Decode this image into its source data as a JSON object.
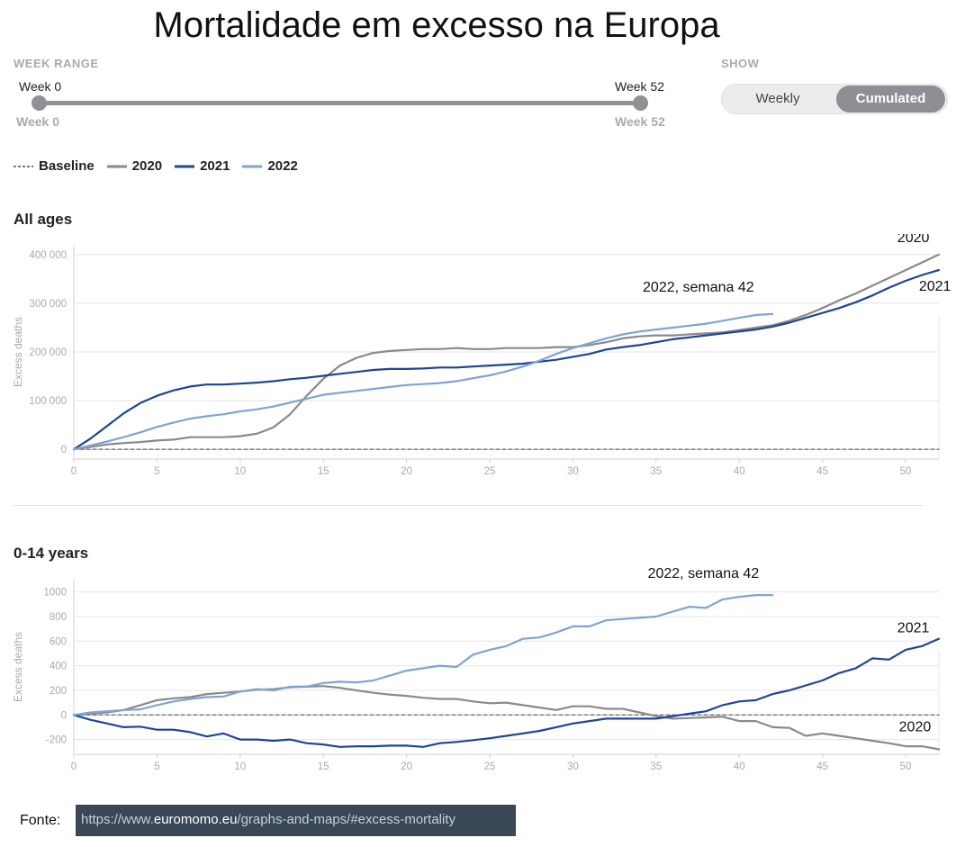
{
  "title": "Mortalidade em excesso na Europa",
  "week_range": {
    "label": "WEEK RANGE",
    "start_top": "Week 0",
    "end_top": "Week 52",
    "start_bottom": "Week 0",
    "end_bottom": "Week 52",
    "start_value": 0,
    "end_value": 52
  },
  "show": {
    "label": "SHOW",
    "options": [
      "Weekly",
      "Cumulated"
    ],
    "selected": "Cumulated"
  },
  "legend": {
    "items": [
      {
        "label": "Baseline",
        "color": "#777777",
        "dashed": true
      },
      {
        "label": "2020",
        "color": "#8a8a8a"
      },
      {
        "label": "2021",
        "color": "#1d4597"
      },
      {
        "label": "2022",
        "color": "#7ea4d6"
      }
    ]
  },
  "source": {
    "label": "Fonte:",
    "url_prefix": "https://www.",
    "url_domain": "euromomo.eu",
    "url_suffix": "/graphs-and-maps/#excess-mortality"
  },
  "chart_data": [
    {
      "type": "line",
      "title": "All ages",
      "ylabel": "Excess deaths",
      "xlabel": "",
      "xlim": [
        0,
        52
      ],
      "ylim": [
        -20000,
        420000
      ],
      "x_ticks": [
        0,
        5,
        10,
        15,
        20,
        25,
        30,
        35,
        40,
        45,
        50
      ],
      "y_ticks": [
        0,
        100000,
        200000,
        300000,
        400000
      ],
      "y_tick_labels": [
        "0",
        "100 000",
        "200 000",
        "300 000",
        "400 000"
      ],
      "grid": true,
      "annotations": [
        {
          "text": "2020",
          "x": 49.5,
          "y": 426000
        },
        {
          "text": "2021",
          "x": 50.8,
          "y": 326000
        },
        {
          "text": "2022, semana 42",
          "x": 34.2,
          "y": 324000
        }
      ],
      "series": [
        {
          "name": "Baseline",
          "color": "#777777",
          "dashed": true,
          "x": [
            0,
            52
          ],
          "y": [
            0,
            0
          ]
        },
        {
          "name": "2020",
          "color": "#8a8a8a",
          "x": [
            0,
            1,
            2,
            3,
            4,
            5,
            6,
            7,
            8,
            9,
            10,
            11,
            12,
            13,
            14,
            15,
            16,
            17,
            18,
            19,
            20,
            21,
            22,
            23,
            24,
            25,
            26,
            27,
            28,
            29,
            30,
            31,
            32,
            33,
            34,
            35,
            36,
            37,
            38,
            39,
            40,
            41,
            42,
            43,
            44,
            45,
            46,
            47,
            48,
            49,
            50,
            51,
            52
          ],
          "y": [
            0,
            5000,
            10000,
            13000,
            15000,
            18000,
            20000,
            25000,
            25000,
            25000,
            27000,
            32000,
            45000,
            72000,
            110000,
            145000,
            172000,
            188000,
            198000,
            202000,
            204000,
            206000,
            206000,
            208000,
            206000,
            206000,
            208000,
            208000,
            208000,
            210000,
            210000,
            214000,
            220000,
            228000,
            232000,
            234000,
            234000,
            236000,
            238000,
            240000,
            245000,
            250000,
            255000,
            264000,
            276000,
            290000,
            306000,
            320000,
            336000,
            352000,
            368000,
            384000,
            400000
          ]
        },
        {
          "name": "2021",
          "color": "#1d4597",
          "x": [
            0,
            1,
            2,
            3,
            4,
            5,
            6,
            7,
            8,
            9,
            10,
            11,
            12,
            13,
            14,
            15,
            16,
            17,
            18,
            19,
            20,
            21,
            22,
            23,
            24,
            25,
            26,
            27,
            28,
            29,
            30,
            31,
            32,
            33,
            34,
            35,
            36,
            37,
            38,
            39,
            40,
            41,
            42,
            43,
            44,
            45,
            46,
            47,
            48,
            49,
            50,
            51,
            52
          ],
          "y": [
            0,
            22000,
            48000,
            74000,
            95000,
            110000,
            121000,
            129000,
            133000,
            133000,
            135000,
            137000,
            140000,
            144000,
            147000,
            151000,
            155000,
            159000,
            163000,
            165000,
            165000,
            166000,
            168000,
            168000,
            170000,
            172000,
            174000,
            176000,
            180000,
            184000,
            190000,
            196000,
            205000,
            210000,
            214000,
            220000,
            226000,
            230000,
            234000,
            238000,
            242000,
            246000,
            252000,
            260000,
            270000,
            280000,
            290000,
            302000,
            316000,
            332000,
            346000,
            358000,
            368000
          ]
        },
        {
          "name": "2022",
          "color": "#7ea4d6",
          "x": [
            0,
            1,
            2,
            3,
            4,
            5,
            6,
            7,
            8,
            9,
            10,
            11,
            12,
            13,
            14,
            15,
            16,
            17,
            18,
            19,
            20,
            21,
            22,
            23,
            24,
            25,
            26,
            27,
            28,
            29,
            30,
            31,
            32,
            33,
            34,
            35,
            36,
            37,
            38,
            39,
            40,
            41,
            42
          ],
          "y": [
            0,
            8000,
            16000,
            25000,
            35000,
            46000,
            55000,
            63000,
            68000,
            72000,
            78000,
            82000,
            88000,
            96000,
            104000,
            112000,
            116000,
            120000,
            124000,
            128000,
            132000,
            134000,
            136000,
            140000,
            146000,
            152000,
            160000,
            170000,
            182000,
            196000,
            208000,
            218000,
            228000,
            236000,
            242000,
            246000,
            250000,
            254000,
            258000,
            264000,
            270000,
            276000,
            278000
          ]
        }
      ]
    },
    {
      "type": "line",
      "title": "0-14 years",
      "ylabel": "Excess deaths",
      "xlabel": "",
      "xlim": [
        0,
        52
      ],
      "ylim": [
        -320,
        1100
      ],
      "x_ticks": [
        0,
        5,
        10,
        15,
        20,
        25,
        30,
        35,
        40,
        45,
        50
      ],
      "y_ticks": [
        -200,
        0,
        200,
        400,
        600,
        800,
        1000
      ],
      "y_tick_labels": [
        "-200",
        "0",
        "200",
        "400",
        "600",
        "800",
        "1000"
      ],
      "grid": true,
      "annotations": [
        {
          "text": "2022, semana 42",
          "x": 34.5,
          "y": 1115
        },
        {
          "text": "2021",
          "x": 49.5,
          "y": 670
        },
        {
          "text": "2020",
          "x": 49.6,
          "y": -135
        }
      ],
      "series": [
        {
          "name": "Baseline",
          "color": "#777777",
          "dashed": true,
          "x": [
            0,
            52
          ],
          "y": [
            0,
            0
          ]
        },
        {
          "name": "2020",
          "color": "#8a8a8a",
          "x": [
            0,
            1,
            2,
            3,
            4,
            5,
            6,
            7,
            8,
            9,
            10,
            11,
            12,
            13,
            14,
            15,
            16,
            17,
            18,
            19,
            20,
            21,
            22,
            23,
            24,
            25,
            26,
            27,
            28,
            29,
            30,
            31,
            32,
            33,
            34,
            35,
            36,
            37,
            38,
            39,
            40,
            41,
            42,
            43,
            44,
            45,
            46,
            47,
            48,
            49,
            50,
            51,
            52
          ],
          "y": [
            0,
            10,
            20,
            40,
            80,
            120,
            135,
            145,
            170,
            180,
            190,
            205,
            210,
            225,
            230,
            235,
            220,
            200,
            180,
            165,
            155,
            140,
            130,
            130,
            110,
            95,
            100,
            80,
            60,
            40,
            70,
            70,
            50,
            50,
            20,
            -10,
            -30,
            -25,
            -20,
            -15,
            -50,
            -50,
            -100,
            -105,
            -170,
            -150,
            -170,
            -190,
            -210,
            -230,
            -255,
            -255,
            -280
          ]
        },
        {
          "name": "2021",
          "color": "#1d4597",
          "x": [
            0,
            1,
            2,
            3,
            4,
            5,
            6,
            7,
            8,
            9,
            10,
            11,
            12,
            13,
            14,
            15,
            16,
            17,
            18,
            19,
            20,
            21,
            22,
            23,
            24,
            25,
            26,
            27,
            28,
            29,
            30,
            31,
            32,
            33,
            34,
            35,
            36,
            37,
            38,
            39,
            40,
            41,
            42,
            43,
            44,
            45,
            46,
            47,
            48,
            49,
            50,
            51,
            52
          ],
          "y": [
            0,
            -40,
            -70,
            -100,
            -95,
            -120,
            -120,
            -140,
            -175,
            -150,
            -200,
            -200,
            -210,
            -200,
            -230,
            -240,
            -260,
            -255,
            -255,
            -250,
            -250,
            -260,
            -230,
            -220,
            -205,
            -190,
            -170,
            -150,
            -130,
            -100,
            -70,
            -50,
            -30,
            -30,
            -30,
            -30,
            -10,
            10,
            30,
            80,
            110,
            120,
            170,
            200,
            240,
            280,
            340,
            380,
            460,
            450,
            530,
            560,
            620
          ]
        },
        {
          "name": "2022",
          "color": "#7ea4d6",
          "x": [
            0,
            1,
            2,
            3,
            4,
            5,
            6,
            7,
            8,
            9,
            10,
            11,
            12,
            13,
            14,
            15,
            16,
            17,
            18,
            19,
            20,
            21,
            22,
            23,
            24,
            25,
            26,
            27,
            28,
            29,
            30,
            31,
            32,
            33,
            34,
            35,
            36,
            37,
            38,
            39,
            40,
            41,
            42
          ],
          "y": [
            0,
            20,
            30,
            40,
            45,
            80,
            110,
            130,
            145,
            150,
            190,
            210,
            200,
            230,
            230,
            260,
            270,
            265,
            280,
            320,
            360,
            380,
            400,
            390,
            490,
            530,
            560,
            620,
            630,
            670,
            720,
            720,
            770,
            780,
            790,
            800,
            840,
            880,
            870,
            940,
            960,
            975,
            975
          ]
        }
      ]
    }
  ]
}
